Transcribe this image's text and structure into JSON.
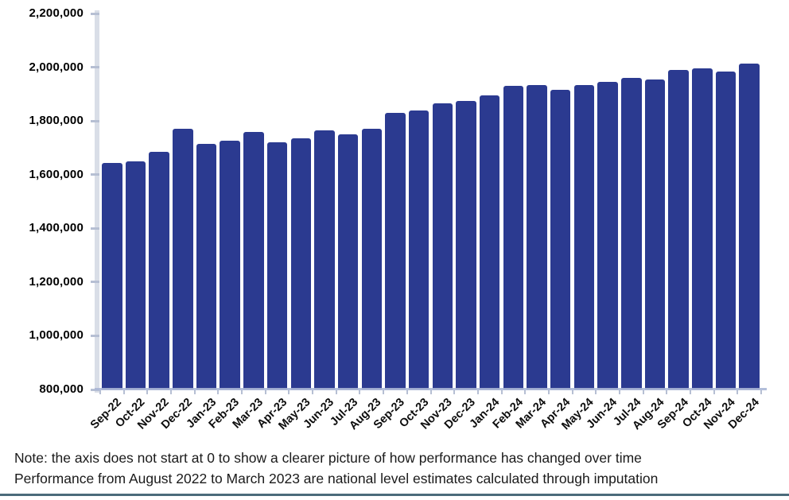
{
  "chart_data": {
    "type": "bar",
    "title": "",
    "xlabel": "",
    "ylabel": "",
    "categories": [
      "Sep-22",
      "Oct-22",
      "Nov-22",
      "Dec-22",
      "Jan-23",
      "Feb-23",
      "Mar-23",
      "Apr-23",
      "May-23",
      "Jun-23",
      "Jul-23",
      "Aug-23",
      "Sep-23",
      "Oct-23",
      "Nov-23",
      "Dec-23",
      "Jan-24",
      "Feb-24",
      "Mar-24",
      "Apr-24",
      "May-24",
      "Jun-24",
      "Jul-24",
      "Aug-24",
      "Sep-24",
      "Oct-24",
      "Nov-24",
      "Dec-24"
    ],
    "values": [
      1645000,
      1650000,
      1685000,
      1770000,
      1715000,
      1725000,
      1760000,
      1720000,
      1735000,
      1765000,
      1750000,
      1770000,
      1830000,
      1840000,
      1865000,
      1875000,
      1895000,
      1930000,
      1935000,
      1915000,
      1935000,
      1945000,
      1960000,
      1955000,
      1990000,
      1995000,
      1985000,
      2015000
    ],
    "ylim": [
      800000,
      2200000
    ],
    "ytick_values": [
      2200000,
      2000000,
      1800000,
      1600000,
      1400000,
      1200000,
      1000000,
      800000
    ],
    "ytick_labels": [
      "2,200,000",
      "2,000,000",
      "1,800,000",
      "1,600,000",
      "1,400,000",
      "1,200,000",
      "1,000,000",
      "800,000"
    ],
    "grid": false,
    "legend": false,
    "colors": {
      "bar": "#2b3a90",
      "y_axis_line": "#d9dee7",
      "axis_tick": "#b6bfd3",
      "baseline": "#abb7d6",
      "label_text": "#000000"
    }
  },
  "notes": {
    "line1": "Note: the axis does not start at 0 to show a clearer picture of how performance has changed over time",
    "line2": "Performance from August 2022 to March 2023 are national level estimates calculated through imputation"
  },
  "footer": {
    "rule_color": "#4b6b7b"
  }
}
